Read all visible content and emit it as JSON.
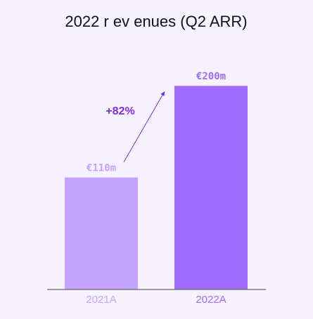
{
  "chart_data": {
    "type": "bar",
    "title": "2022 r ev enues (Q2 ARR)",
    "categories": [
      "2021A",
      "2022A"
    ],
    "values": [
      110,
      200
    ],
    "value_labels": [
      "€110m",
      "€200m"
    ],
    "ylim": [
      0,
      236
    ],
    "grid": false,
    "annotation": "+82%"
  },
  "colors": {
    "bar_2021": "#c4a3ff",
    "bar_2022": "#a06bff",
    "label_2021": "#c4a3ff",
    "label_2022": "#a06bff",
    "annotation": "#7a2fe0",
    "axis": "#666666"
  }
}
